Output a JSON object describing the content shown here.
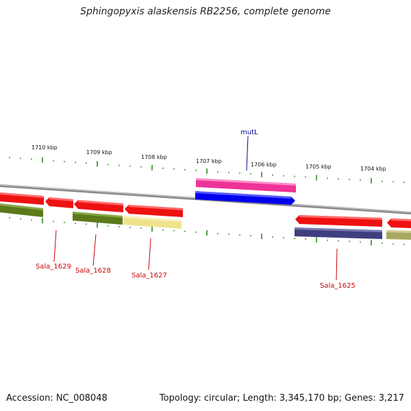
{
  "title": "Sphingopyxis alaskensis RB2256, complete genome",
  "footer": {
    "accession": "Accession: NC_008048",
    "topology": "Topology: circular; Length: 3,345,170 bp; Genes: 3,217"
  },
  "scale_labels": [
    "1710 kbp",
    "1709 kbp",
    "1708 kbp",
    "1707 kbp",
    "1706 kbp",
    "1705 kbp",
    "1704 kbp"
  ],
  "gene_labels": [
    {
      "text": "mutL",
      "color": "#000099"
    },
    {
      "text": "Sala_1629",
      "color": "#cc0000"
    },
    {
      "text": "Sala_1628",
      "color": "#cc0000"
    },
    {
      "text": "Sala_1627",
      "color": "#cc0000"
    },
    {
      "text": "Sala_1625",
      "color": "#cc0000"
    }
  ],
  "colors": {
    "red_feature": "#ee1111",
    "magenta_feature": "#ee3399",
    "blue_feature": "#0000ee",
    "olive_feature": "#5c7a1a",
    "pale_yellow_feature": "#eee38c",
    "navy_feature": "#3f3f80",
    "khaki_feature": "#a8a862",
    "backbone": "#888888",
    "tick": "#2d8a1f"
  }
}
